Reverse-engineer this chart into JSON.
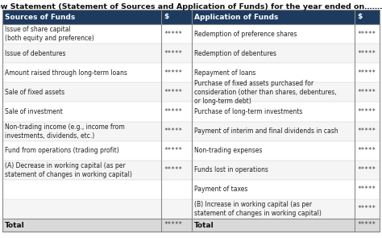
{
  "title": "Fund Flow Statement (Statement of Sources and Application of Funds) for the year ended on…………………",
  "header_bg": "#1e3a5f",
  "header_text_color": "#ffffff",
  "body_bg": "#ffffff",
  "border_color": "#888888",
  "title_fontsize": 6.8,
  "cell_fontsize": 5.5,
  "header_fontsize": 6.5,
  "stars": "*****",
  "total_bg": "#d9d9d9",
  "left_header": "Sources of Funds",
  "right_header": "Application of Funds",
  "left_rows": [
    [
      "Issue of share capital\n(both equity and preference)",
      true
    ],
    [
      "Issue of debentures",
      true
    ],
    [
      "Amount raised through long-term loans",
      true
    ],
    [
      "Sale of fixed assets",
      true
    ],
    [
      "Sale of investment",
      true
    ],
    [
      "Non-trading income (e.g., income from\ninvestments, dividends, etc.)",
      true
    ],
    [
      "Fund from operations (trading profit)",
      true
    ],
    [
      "(A) Decrease in working capital (as per\nstatement of changes in working capital)",
      true
    ],
    [
      "",
      true
    ],
    [
      "",
      true
    ]
  ],
  "right_rows": [
    [
      "Redemption of preference shares",
      true
    ],
    [
      "Redemption of debentures",
      true
    ],
    [
      "Repayment of loans",
      true
    ],
    [
      "Purchase of fixed assets purchased for\nconsideration (other than shares, debentures,\nor long-term debt)",
      true
    ],
    [
      "Purchase of long-term investments",
      true
    ],
    [
      "Payment of interim and final dividends in cash",
      true
    ],
    [
      "Non-trading expenses",
      true
    ],
    [
      "Funds lost in operations",
      true
    ],
    [
      "Payment of taxes",
      true
    ],
    [
      "(B) Increase in working capital (as per\nstatement of changes in working capital)",
      true
    ]
  ]
}
